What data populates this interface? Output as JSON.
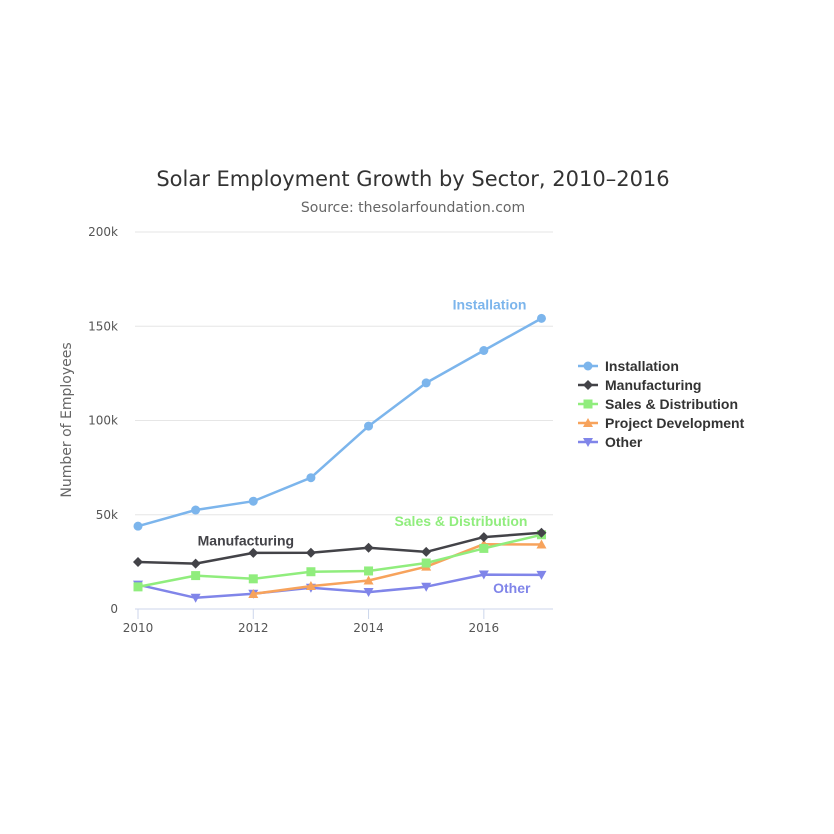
{
  "chart_data": {
    "type": "line",
    "title": "Solar Employment Growth by Sector, 2010–2016",
    "subtitle": "Source: thesolarfoundation.com",
    "xlabel": "",
    "ylabel": "Number of Employees",
    "x": [
      2010,
      2011,
      2012,
      2013,
      2014,
      2015,
      2016,
      2017
    ],
    "xlim": [
      2010,
      2017.2
    ],
    "ylim": [
      0,
      200000
    ],
    "x_ticks": [
      "2010",
      "2012",
      "2014",
      "2016"
    ],
    "y_ticks": [
      "0",
      "50k",
      "100k",
      "150k",
      "200k"
    ],
    "grid": "horizontal",
    "legend_position": "right",
    "series": [
      {
        "name": "Installation",
        "color": "#7cb5ec",
        "marker": "circle",
        "values": [
          43934,
          52503,
          57177,
          69658,
          97031,
          119931,
          137133,
          154175
        ]
      },
      {
        "name": "Manufacturing",
        "color": "#434348",
        "marker": "diamond",
        "values": [
          24916,
          24064,
          29742,
          29851,
          32490,
          30282,
          38121,
          40434
        ]
      },
      {
        "name": "Sales & Distribution",
        "color": "#90ed7d",
        "marker": "square",
        "values": [
          11744,
          17722,
          16005,
          19771,
          20185,
          24377,
          32147,
          39387
        ]
      },
      {
        "name": "Project Development",
        "color": "#f7a35c",
        "marker": "triangle",
        "values": [
          null,
          null,
          7988,
          12169,
          15112,
          22452,
          34400,
          34227
        ]
      },
      {
        "name": "Other",
        "color": "#8085e9",
        "marker": "triangle-down",
        "values": [
          12908,
          5948,
          8105,
          11248,
          8989,
          11816,
          18274,
          18111
        ]
      }
    ],
    "annotations": [
      {
        "text": "Installation",
        "series": "Installation"
      },
      {
        "text": "Manufacturing",
        "series": "Manufacturing"
      },
      {
        "text": "Sales & Distribution",
        "series": "Sales & Distribution"
      },
      {
        "text": "Other",
        "series": "Other"
      }
    ]
  }
}
